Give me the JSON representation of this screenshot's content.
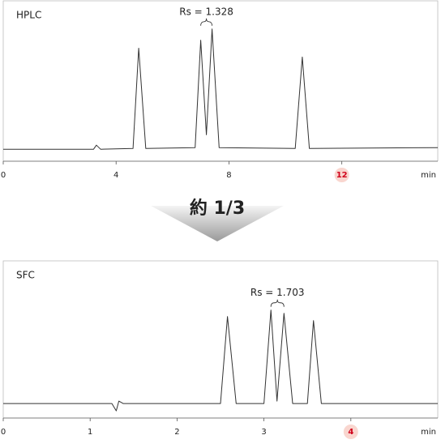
{
  "chart_data": [
    {
      "type": "line",
      "title": "HPLC",
      "xlabel": "min",
      "color": "#333333",
      "x": [
        0,
        3.2,
        3.3,
        3.45,
        4.6,
        4.8,
        5.05,
        6.8,
        7.0,
        7.2,
        7.4,
        7.65,
        10.35,
        10.6,
        10.85,
        15.4
      ],
      "values": [
        0,
        0,
        5,
        0,
        1,
        126,
        1,
        2,
        136,
        18,
        150,
        2,
        1,
        115,
        1,
        2
      ],
      "xlim": [
        0,
        15.4
      ],
      "xticks": [
        0,
        4,
        8,
        12
      ],
      "ylim": [
        -15,
        170
      ],
      "highlight_xtick": 12,
      "highlight_color": "#f9d6cf",
      "annotation": {
        "text": "Rs = 1.328",
        "span": [
          7.0,
          7.4
        ]
      }
    },
    {
      "type": "line",
      "title": "SFC",
      "xlabel": "min",
      "color": "#333333",
      "x": [
        0,
        1.25,
        1.3,
        1.33,
        1.38,
        2.5,
        2.58,
        2.68,
        3.0,
        3.08,
        3.15,
        3.23,
        3.33,
        3.5,
        3.57,
        3.66,
        5.0
      ],
      "values": [
        0,
        0,
        -9,
        3,
        0,
        0,
        108,
        0,
        0,
        116,
        3,
        112,
        0,
        0,
        103,
        0,
        0
      ],
      "xlim": [
        0,
        5.0
      ],
      "xticks": [
        0,
        1,
        2,
        3,
        4
      ],
      "ylim": [
        -18,
        162
      ],
      "highlight_xtick": 4,
      "highlight_color": "#f9d6cf",
      "annotation": {
        "text": "Rs = 1.703",
        "span": [
          3.08,
          3.23
        ]
      }
    }
  ],
  "comparison_label": "約 1/3"
}
